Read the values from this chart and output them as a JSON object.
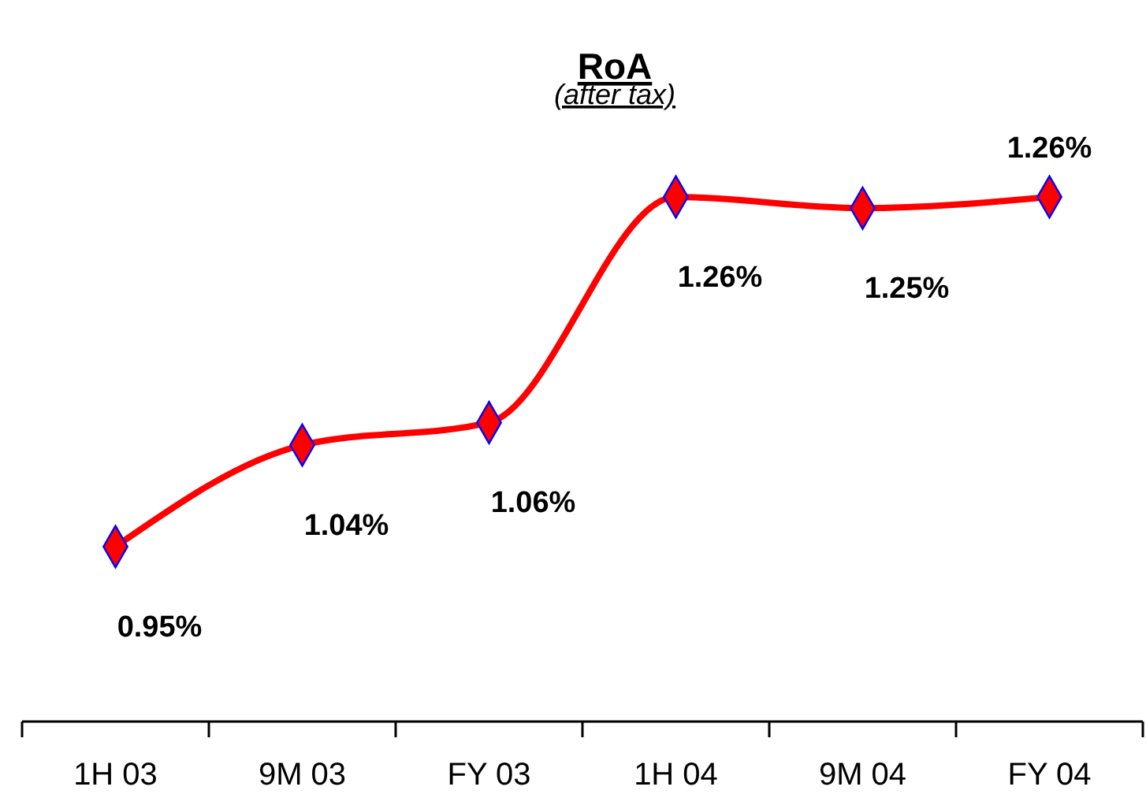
{
  "chart_data": {
    "type": "line",
    "title": "RoA",
    "subtitle": "(after tax)",
    "categories": [
      "1H 03",
      "9M 03",
      "FY 03",
      "1H 04",
      "9M 04",
      "FY 04"
    ],
    "series": [
      {
        "color": "#ff0000",
        "values": [
          0.95,
          1.04,
          1.06,
          1.26,
          1.25,
          1.26
        ],
        "value_labels": [
          "0.95%",
          "1.04%",
          "1.06%",
          "1.26%",
          "1.25%",
          "1.26%"
        ]
      }
    ],
    "marker": "diamond",
    "line_style": "solid"
  }
}
